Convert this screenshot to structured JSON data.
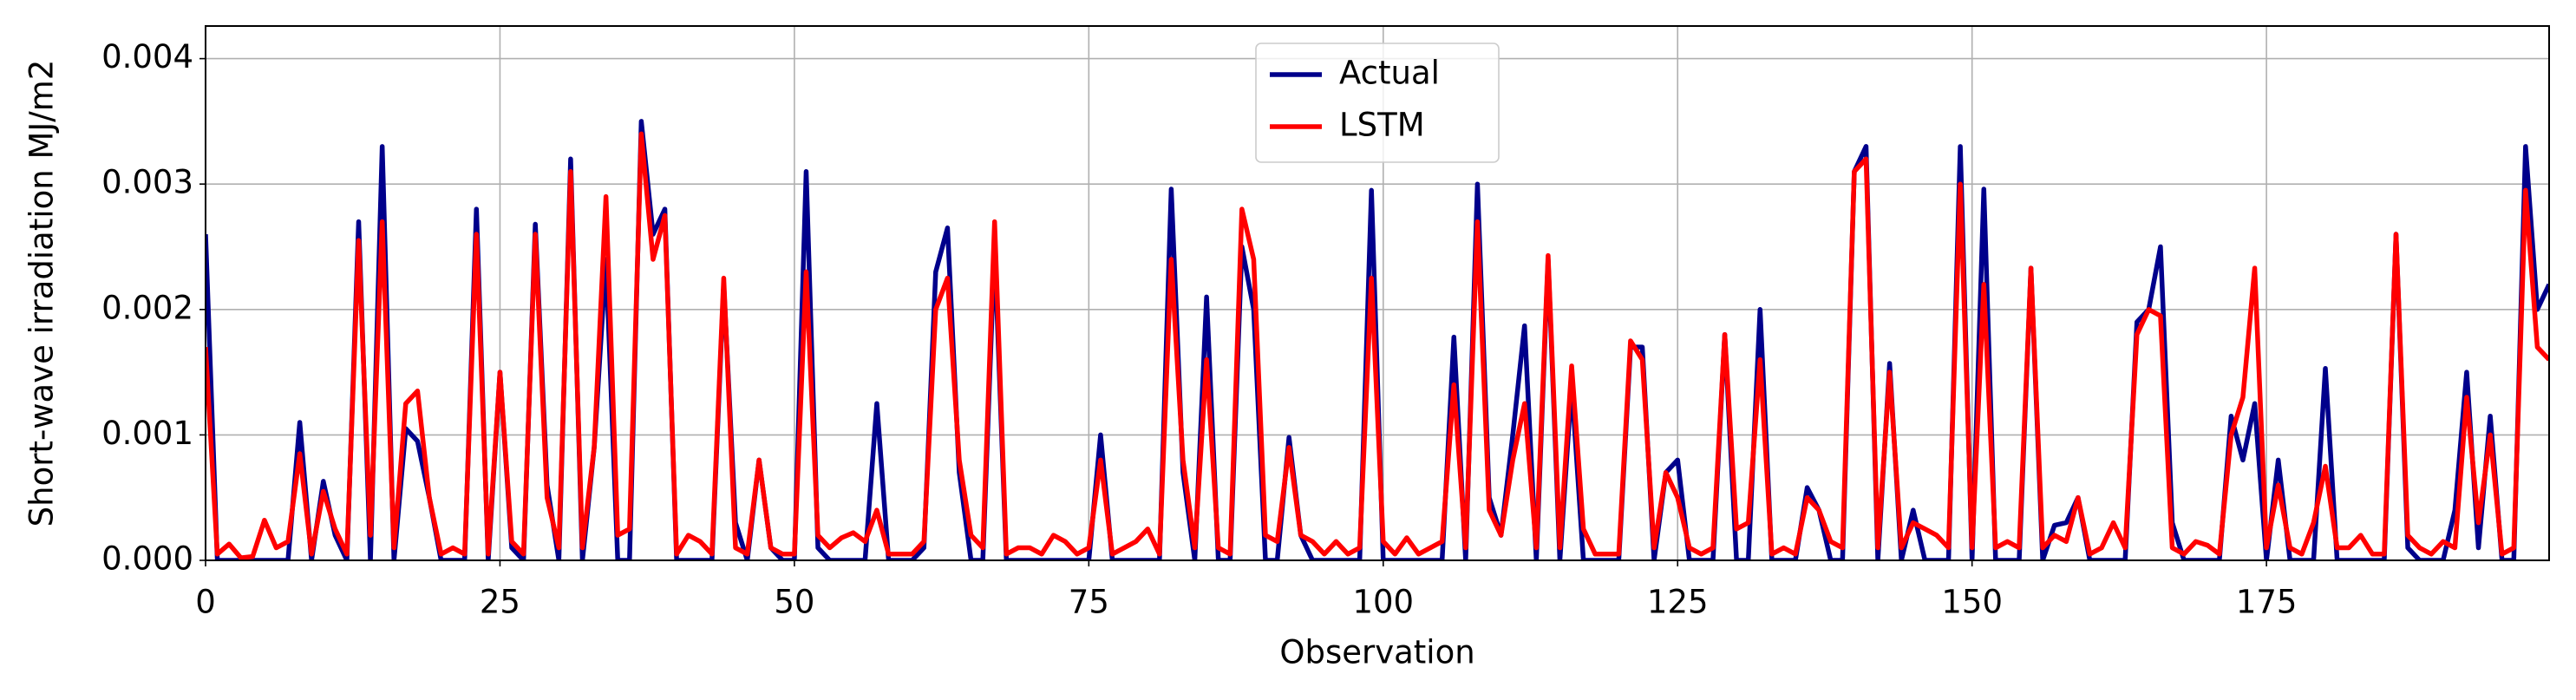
{
  "chart_data": {
    "type": "line",
    "xlabel": "Observation",
    "ylabel": "Short-wave irradiation MJ/m2",
    "x": [
      0,
      1,
      2,
      3,
      4,
      5,
      6,
      7,
      8,
      9,
      10,
      11,
      12,
      13,
      14,
      15,
      16,
      17,
      18,
      19,
      20,
      21,
      22,
      23,
      24,
      25,
      26,
      27,
      28,
      29,
      30,
      31,
      32,
      33,
      34,
      35,
      36,
      37,
      38,
      39,
      40,
      41,
      42,
      43,
      44,
      45,
      46,
      47,
      48,
      49,
      50,
      51,
      52,
      53,
      54,
      55,
      56,
      57,
      58,
      59,
      60,
      61,
      62,
      63,
      64,
      65,
      66,
      67,
      68,
      69,
      70,
      71,
      72,
      73,
      74,
      75,
      76,
      77,
      78,
      79,
      80,
      81,
      82,
      83,
      84,
      85,
      86,
      87,
      88,
      89,
      90,
      91,
      92,
      93,
      94,
      95,
      96,
      97,
      98,
      99,
      100,
      101,
      102,
      103,
      104,
      105,
      106,
      107,
      108,
      109,
      110,
      111,
      112,
      113,
      114,
      115,
      116,
      117,
      118,
      119,
      120,
      121,
      122,
      123,
      124,
      125,
      126,
      127,
      128,
      129,
      130,
      131,
      132,
      133,
      134,
      135,
      136,
      137,
      138,
      139,
      140,
      141,
      142,
      143,
      144,
      145,
      146,
      147,
      148,
      149,
      150,
      151,
      152,
      153,
      154,
      155,
      156,
      157,
      158,
      159,
      160,
      161,
      162,
      163,
      164,
      165,
      166,
      167,
      168,
      169,
      170,
      171,
      172,
      173,
      174,
      175,
      176,
      177,
      178,
      179,
      180,
      181,
      182,
      183,
      184,
      185,
      186,
      187,
      188,
      189,
      190,
      191,
      192,
      193,
      194,
      195,
      196,
      197,
      198,
      199
    ],
    "series": [
      {
        "name": "Actual",
        "color": "#00008b",
        "values": [
          0.0026,
          0,
          0,
          0,
          0,
          0,
          0,
          0,
          0.0011,
          0,
          0.00063,
          0.0002,
          0,
          0.0027,
          0,
          0.0033,
          0,
          0.00105,
          0.00095,
          0.0005,
          0,
          0,
          0,
          0.0028,
          0,
          0.0015,
          0.0001,
          0,
          0.00268,
          0.0006,
          0,
          0.0032,
          0,
          0.0009,
          0.0024,
          0,
          0,
          0.0035,
          0.0026,
          0.0028,
          0,
          0,
          0,
          0,
          0.0022,
          0.0003,
          0,
          0.0008,
          0.0001,
          0,
          0,
          0.0031,
          0.0001,
          0,
          0,
          0,
          0,
          0.00125,
          0,
          0,
          0,
          0.0001,
          0.0023,
          0.00265,
          0.0007,
          0,
          0,
          0.0025,
          0,
          0,
          0,
          0,
          0,
          0,
          0,
          0,
          0.001,
          0,
          0,
          0,
          0,
          0,
          0.00296,
          0.0007,
          0,
          0.0021,
          0,
          0,
          0.0025,
          0.002,
          0,
          0,
          0.00098,
          0.0002,
          0,
          0,
          0,
          0,
          0,
          0.00295,
          0,
          0,
          0,
          0,
          0,
          0,
          0.00178,
          0,
          0.003,
          0.0005,
          0.0002,
          0.001,
          0.00187,
          0,
          0.0024,
          0,
          0.0014,
          0,
          0,
          0,
          0,
          0.0017,
          0.0017,
          0,
          0.0007,
          0.0008,
          0,
          0,
          0,
          0.0018,
          0,
          0,
          0.002,
          0,
          0,
          0,
          0.00058,
          0.0004,
          0,
          0,
          0.0031,
          0.0033,
          0,
          0.00157,
          0,
          0.0004,
          0,
          0,
          0,
          0.0033,
          0,
          0.00296,
          0,
          0,
          0,
          0.00233,
          0,
          0.00028,
          0.0003,
          0.0005,
          0,
          0,
          0,
          0,
          0.0019,
          0.002,
          0.0025,
          0.0003,
          0,
          0,
          0,
          0,
          0.00115,
          0.0008,
          0.00125,
          0,
          0.0008,
          0,
          0,
          0,
          0.00153,
          0,
          0,
          0,
          0,
          0,
          0.0026,
          0.0001,
          0,
          0,
          0,
          0.0004,
          0.0015,
          0.0001,
          0.00115,
          0,
          0,
          0.0033,
          0.002,
          0.0022
        ]
      },
      {
        "name": "LSTM",
        "color": "#ff0000",
        "values": [
          0.0017,
          5e-05,
          0.00013,
          2e-05,
          3e-05,
          0.00032,
          0.0001,
          0.00015,
          0.00085,
          5e-05,
          0.00055,
          0.00025,
          5e-05,
          0.00255,
          0.0002,
          0.0027,
          0.0001,
          0.00125,
          0.00135,
          0.0005,
          5e-05,
          0.0001,
          5e-05,
          0.0026,
          5e-05,
          0.0015,
          0.00015,
          5e-05,
          0.0026,
          0.0005,
          0.0001,
          0.0031,
          0.0001,
          0.0009,
          0.0029,
          0.0002,
          0.00025,
          0.0034,
          0.0024,
          0.00275,
          5e-05,
          0.0002,
          0.00015,
          5e-05,
          0.00225,
          0.0001,
          5e-05,
          0.0008,
          0.0001,
          5e-05,
          5e-05,
          0.0023,
          0.0002,
          0.0001,
          0.00018,
          0.00022,
          0.00015,
          0.0004,
          5e-05,
          5e-05,
          5e-05,
          0.00015,
          0.002,
          0.00225,
          0.0008,
          0.0002,
          0.0001,
          0.0027,
          5e-05,
          0.0001,
          0.0001,
          5e-05,
          0.0002,
          0.00015,
          5e-05,
          0.0001,
          0.0008,
          5e-05,
          0.0001,
          0.00015,
          0.00025,
          5e-05,
          0.0024,
          0.0008,
          0.0001,
          0.0016,
          0.0001,
          5e-05,
          0.0028,
          0.0024,
          0.0002,
          0.00015,
          0.0009,
          0.0002,
          0.00015,
          5e-05,
          0.00015,
          5e-05,
          0.0001,
          0.00225,
          0.00015,
          5e-05,
          0.00018,
          5e-05,
          0.0001,
          0.00015,
          0.0014,
          0.0001,
          0.0027,
          0.0004,
          0.0002,
          0.0008,
          0.00125,
          0.0001,
          0.00243,
          0.0001,
          0.00155,
          0.00025,
          5e-05,
          5e-05,
          5e-05,
          0.00175,
          0.0016,
          0.0001,
          0.0007,
          0.0005,
          0.0001,
          5e-05,
          0.0001,
          0.0018,
          0.00025,
          0.0003,
          0.0016,
          5e-05,
          0.0001,
          5e-05,
          0.0005,
          0.0004,
          0.00015,
          0.0001,
          0.0031,
          0.0032,
          0.0001,
          0.0015,
          0.0001,
          0.0003,
          0.00025,
          0.0002,
          0.0001,
          0.003,
          0.0001,
          0.0022,
          0.0001,
          0.00015,
          0.0001,
          0.00233,
          0.0001,
          0.0002,
          0.00015,
          0.0005,
          5e-05,
          0.0001,
          0.0003,
          0.0001,
          0.0018,
          0.002,
          0.00195,
          0.0001,
          5e-05,
          0.00015,
          0.00012,
          5e-05,
          0.001,
          0.0013,
          0.00233,
          0.0001,
          0.0006,
          0.0001,
          5e-05,
          0.0003,
          0.00075,
          0.0001,
          0.0001,
          0.0002,
          5e-05,
          5e-05,
          0.0026,
          0.0002,
          0.0001,
          5e-05,
          0.00015,
          0.0001,
          0.0013,
          0.0003,
          0.001,
          5e-05,
          0.0001,
          0.00295,
          0.0017,
          0.0016
        ]
      }
    ],
    "xlim": [
      0,
      199
    ],
    "xticks": [
      0,
      25,
      50,
      75,
      100,
      125,
      150,
      175
    ],
    "ylim": [
      0,
      0.00426
    ],
    "yticks": [
      {
        "value": 0,
        "label": "0.000"
      },
      {
        "value": 0.001,
        "label": "0.001"
      },
      {
        "value": 0.002,
        "label": "0.002"
      },
      {
        "value": 0.003,
        "label": "0.003"
      },
      {
        "value": 0.004,
        "label": "0.004"
      }
    ],
    "grid": true,
    "legend": "upper center"
  }
}
